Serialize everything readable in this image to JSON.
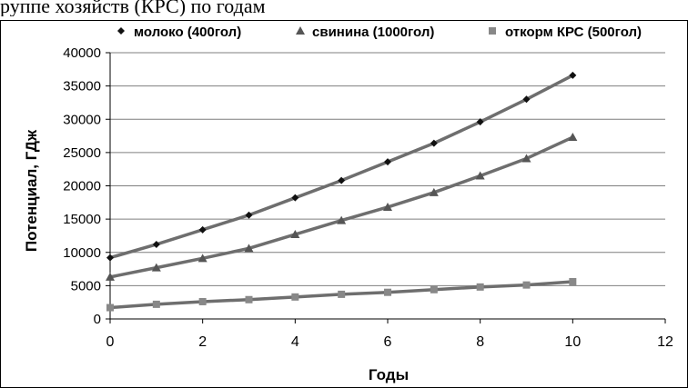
{
  "page": {
    "top_text": "руппе хозяйств (КРС) по годам"
  },
  "chart_data": {
    "type": "line",
    "title": "",
    "xlabel": "Годы",
    "ylabel": "Потенциал, ГДж",
    "xlim": [
      0,
      12
    ],
    "ylim": [
      0,
      40000
    ],
    "x_ticks": [
      0,
      2,
      4,
      6,
      8,
      10,
      12
    ],
    "y_ticks": [
      0,
      5000,
      10000,
      15000,
      20000,
      25000,
      30000,
      35000,
      40000
    ],
    "grid": "horizontal",
    "legend_position": "top",
    "series": [
      {
        "name": "молоко (400гол)",
        "marker": "diamond",
        "color": "#111111",
        "x": [
          0,
          1,
          2,
          3,
          4,
          5,
          6,
          7,
          8,
          9,
          10
        ],
        "values": [
          9200,
          11200,
          13400,
          15600,
          18200,
          20800,
          23600,
          26400,
          29600,
          33000,
          36600
        ]
      },
      {
        "name": "свинина (1000гол)",
        "marker": "triangle",
        "color": "#555555",
        "x": [
          0,
          1,
          2,
          3,
          4,
          5,
          6,
          7,
          8,
          9,
          10
        ],
        "values": [
          6300,
          7700,
          9100,
          10600,
          12700,
          14800,
          16800,
          19000,
          21500,
          24100,
          27300
        ]
      },
      {
        "name": "откорм КРС (500гол)",
        "marker": "square",
        "color": "#888888",
        "x": [
          0,
          1,
          2,
          3,
          4,
          5,
          6,
          7,
          8,
          9,
          10
        ],
        "values": [
          1700,
          2200,
          2600,
          2900,
          3300,
          3700,
          4000,
          4400,
          4800,
          5100,
          5600
        ]
      }
    ]
  }
}
